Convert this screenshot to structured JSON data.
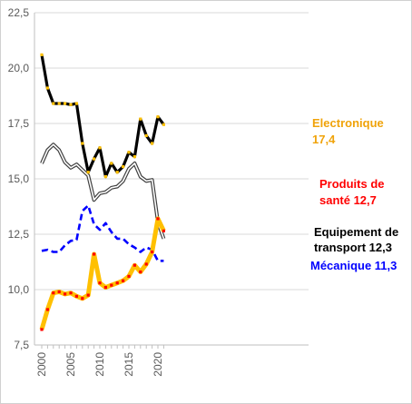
{
  "chart_data": {
    "type": "line",
    "x": [
      2000,
      2001,
      2002,
      2003,
      2004,
      2005,
      2006,
      2007,
      2008,
      2009,
      2010,
      2011,
      2012,
      2013,
      2014,
      2015,
      2016,
      2017,
      2018,
      2019,
      2020,
      2021
    ],
    "ylim": [
      7.5,
      22.5
    ],
    "yticks": [
      "7,5",
      "10,0",
      "12,5",
      "15,0",
      "17,5",
      "20,0",
      "22,5"
    ],
    "xticks": [
      "2000",
      "2005",
      "2010",
      "2015",
      "2020"
    ],
    "grid": true,
    "series": [
      {
        "key": "electronique",
        "label_line1": "Electronique",
        "label_line2": "17,4",
        "color": "#000000",
        "marker_color": "#ffc000",
        "label_color": "#f0a30a",
        "style": "solid-thick",
        "values": [
          20.6,
          19.1,
          18.4,
          18.4,
          18.4,
          18.35,
          18.4,
          16.6,
          15.3,
          15.9,
          16.4,
          15.1,
          15.7,
          15.3,
          15.55,
          16.2,
          16.0,
          17.7,
          16.95,
          16.6,
          17.8,
          17.45
        ]
      },
      {
        "key": "sante",
        "label_line1": "Produits de",
        "label_line2": "santé 12,7",
        "color": "#ffc000",
        "marker_color": "#ff0000",
        "label_color": "#ff0000",
        "style": "solid-thick-yellow",
        "values": [
          8.2,
          9.1,
          9.85,
          9.9,
          9.8,
          9.85,
          9.7,
          9.6,
          9.75,
          11.6,
          10.3,
          10.1,
          10.2,
          10.3,
          10.4,
          10.6,
          11.1,
          10.8,
          11.15,
          11.7,
          13.2,
          12.65
        ]
      },
      {
        "key": "transport",
        "label_line1": "Equipement de",
        "label_line2": "transport  12,3",
        "color": "#404040",
        "marker_color": "",
        "label_color": "#000000",
        "style": "double",
        "values": [
          15.7,
          16.3,
          16.55,
          16.3,
          15.75,
          15.5,
          15.65,
          15.4,
          15.15,
          14.05,
          14.35,
          14.4,
          14.6,
          14.65,
          14.9,
          15.45,
          15.7,
          15.1,
          14.9,
          14.95,
          13.05,
          12.3
        ]
      },
      {
        "key": "mecanique",
        "label_line1": "Mécanique  11,3",
        "label_line2": "",
        "color": "#0000ff",
        "marker_color": "",
        "label_color": "#0000ff",
        "style": "dashed",
        "values": [
          11.75,
          11.8,
          11.7,
          11.7,
          12.0,
          12.2,
          12.25,
          13.55,
          13.8,
          12.95,
          12.7,
          13.0,
          12.6,
          12.3,
          12.3,
          12.05,
          11.9,
          11.7,
          11.9,
          11.8,
          11.3,
          11.3
        ]
      }
    ]
  }
}
